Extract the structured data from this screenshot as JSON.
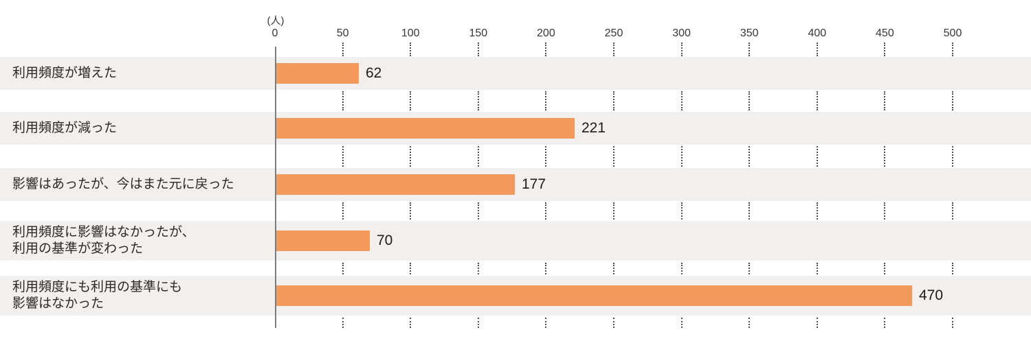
{
  "chart_data": {
    "type": "bar",
    "orientation": "horizontal",
    "title": "",
    "unit_label": "(人)",
    "categories": [
      "利用頻度が増えた",
      "利用頻度が減った",
      "影響はあったが、今はまた元に戻った",
      "利用頻度に影響はなかったが、利用の基準が変わった",
      "利用頻度にも利用の基準にも影響はなかった"
    ],
    "category_lines": [
      [
        "利用頻度が増えた"
      ],
      [
        "利用頻度が減った"
      ],
      [
        "影響はあったが、今はまた元に戻った"
      ],
      [
        "利用頻度に影響はなかったが、",
        "利用の基準が変わった"
      ],
      [
        "利用頻度にも利用の基準にも",
        "影響はなかった"
      ]
    ],
    "values": [
      62,
      221,
      177,
      70,
      470
    ],
    "value_labels": [
      "62",
      "221",
      "177",
      "70",
      "470"
    ],
    "xlim": [
      0,
      500
    ],
    "tick_step": 50,
    "ticks": [
      "0",
      "50",
      "100",
      "150",
      "200",
      "250",
      "300",
      "350",
      "400",
      "450",
      "500"
    ],
    "grid": "dotted-vertical-in-row-gaps",
    "legend": "none",
    "colors": {
      "bar": "#F2995E",
      "row_band": "#F1F0EE",
      "axis_line": "#7D7D7D",
      "gridline_dots": "#4C4C4C",
      "category_text": "#2C2824",
      "value_text": "#1E1A17",
      "tick_text": "#3A3633",
      "background": "#FFFFFF"
    }
  }
}
